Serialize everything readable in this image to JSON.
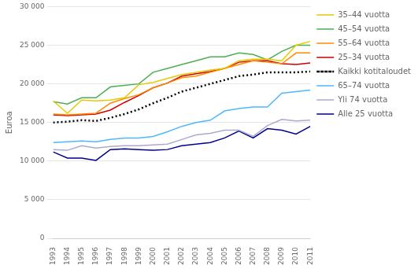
{
  "chart_data": {
    "type": "line",
    "ylabel": "Euroa",
    "x": [
      1993,
      1994,
      1995,
      1996,
      1997,
      1998,
      1999,
      2000,
      2001,
      2002,
      2003,
      2004,
      2005,
      2006,
      2007,
      2008,
      2009,
      2010,
      2011
    ],
    "xlim": [
      1993,
      2011
    ],
    "xticks": [
      1993,
      1994,
      1995,
      1996,
      1997,
      1998,
      1999,
      2000,
      2001,
      2002,
      2003,
      2004,
      2005,
      2006,
      2007,
      2008,
      2009,
      2010,
      2011
    ],
    "ylim": [
      0,
      30000
    ],
    "yticks": [
      0,
      {
        "value": 5000,
        "label": "5 000"
      },
      {
        "value": 10000,
        "label": "10 000"
      },
      {
        "value": 15000,
        "label": "15 000"
      },
      {
        "value": 20000,
        "label": "20 000"
      },
      {
        "value": 25000,
        "label": "25 000"
      },
      {
        "value": 30000,
        "label": "30 000"
      }
    ],
    "grid": "y",
    "legend": "right",
    "series": [
      {
        "name": "35–44 vuotta",
        "color": "#E8C800",
        "line_style": "solid",
        "values": [
          17800,
          16200,
          17900,
          17800,
          17900,
          18200,
          19900,
          20200,
          20700,
          21200,
          21500,
          21800,
          22000,
          23000,
          23200,
          23200,
          23000,
          25000,
          25500
        ]
      },
      {
        "name": "45–54 vuotta",
        "color": "#4CAF50",
        "line_style": "solid",
        "values": [
          17700,
          17400,
          18200,
          18200,
          19600,
          19800,
          20000,
          21500,
          22000,
          22500,
          23000,
          23500,
          23500,
          24000,
          23800,
          23100,
          24200,
          25000,
          25000
        ]
      },
      {
        "name": "55–64 vuotta",
        "color": "#FF8C00",
        "line_style": "solid",
        "values": [
          16100,
          16000,
          16100,
          16200,
          17500,
          18100,
          18600,
          19500,
          20100,
          20800,
          21000,
          21500,
          22000,
          22500,
          23000,
          22800,
          22600,
          24000,
          24000
        ]
      },
      {
        "name": "25–34 vuotta",
        "color": "#CC0000",
        "line_style": "solid",
        "values": [
          16000,
          15900,
          16000,
          16100,
          16600,
          17600,
          18500,
          19500,
          20100,
          21000,
          21300,
          21600,
          22000,
          22800,
          23000,
          23000,
          22600,
          22500,
          22700
        ]
      },
      {
        "name": "Kaikki kotitaloudet",
        "color": "#000000",
        "line_style": "dotted",
        "values": [
          15000,
          15100,
          15300,
          15200,
          15600,
          16100,
          16700,
          17500,
          18200,
          19000,
          19500,
          20000,
          20500,
          21000,
          21200,
          21500,
          21500,
          21500,
          21600
        ]
      },
      {
        "name": "65–74 vuotta",
        "color": "#4DB8FF",
        "line_style": "solid",
        "values": [
          12400,
          12500,
          12600,
          12500,
          12800,
          13000,
          13000,
          13200,
          13800,
          14500,
          15000,
          15300,
          16500,
          16800,
          17000,
          17000,
          18800,
          19000,
          19200
        ]
      },
      {
        "name": "Yli 74 vuotta",
        "color": "#AAAACC",
        "line_style": "solid",
        "values": [
          11500,
          11400,
          12000,
          11700,
          11900,
          12000,
          12000,
          12100,
          12200,
          12800,
          13400,
          13600,
          14000,
          14000,
          13200,
          14600,
          15400,
          15200,
          15300
        ]
      },
      {
        "name": "Alle 25 vuotta",
        "color": "#00008B",
        "line_style": "solid",
        "values": [
          11200,
          10400,
          10400,
          10100,
          11500,
          11600,
          11500,
          11400,
          11500,
          12000,
          12200,
          12400,
          13000,
          13900,
          13000,
          14200,
          14000,
          13500,
          14500
        ]
      }
    ]
  }
}
